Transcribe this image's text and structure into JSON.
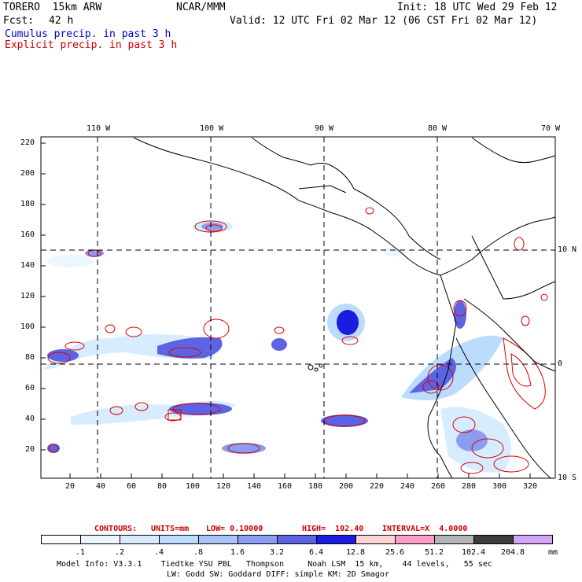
{
  "header": {
    "model": "TORERO  15km ARW",
    "org": "NCAR/MMM",
    "init": "Init: 18 UTC Wed 29 Feb 12",
    "fcst_label": "Fcst:",
    "fcst_value": "42 h",
    "valid": "Valid: 12 UTC Fri 02 Mar 12 (06 CST Fri 02 Mar 12)",
    "cumulus": "Cumulus precip. in past 3 h",
    "explicit": "Explicit precip. in past 3 h"
  },
  "axes": {
    "top_lon_labels": [
      "110 W",
      "100 W",
      "90 W",
      "80 W",
      "70 W"
    ],
    "left_ticks": [
      "220",
      "200",
      "180",
      "160",
      "140",
      "120",
      "100",
      "80",
      "60",
      "40",
      "20"
    ],
    "bottom_ticks": [
      "20",
      "40",
      "60",
      "80",
      "100",
      "120",
      "140",
      "160",
      "180",
      "200",
      "220",
      "240",
      "260",
      "280",
      "300",
      "320"
    ],
    "right_lat_labels": [
      "10 N",
      "0",
      "10 S"
    ]
  },
  "contour_info": {
    "label": "CONTOURS:",
    "units": "UNITS=mm",
    "low": "LOW= 0.10000",
    "high": "HIGH=  102.40",
    "interval": "INTERVAL=X  4.0000"
  },
  "legend": {
    "colors": [
      "#ffffff",
      "#ecf6ff",
      "#d8ecff",
      "#bcdcff",
      "#a8c4f8",
      "#8c9cf0",
      "#5c64e4",
      "#1c1ce0",
      "#ffd4d4",
      "#ff9cc8",
      "#b4b4b4",
      "#3c3c3c",
      "#d4a4f8"
    ],
    "labels": [
      ".1",
      ".2",
      ".4",
      ".8",
      "1.6",
      "3.2",
      "6.4",
      "12.8",
      "25.6",
      "51.2",
      "102.4",
      "204.8"
    ],
    "unit": "mm"
  },
  "footer": {
    "line1": "Model Info: V3.3.1    Tiedtke YSU PBL   Thompson     Noah LSM  15 km,    44 levels,   55 sec",
    "line2": "LW: Godd SW: Goddard DIFF: simple KM: 2D Smagor"
  }
}
